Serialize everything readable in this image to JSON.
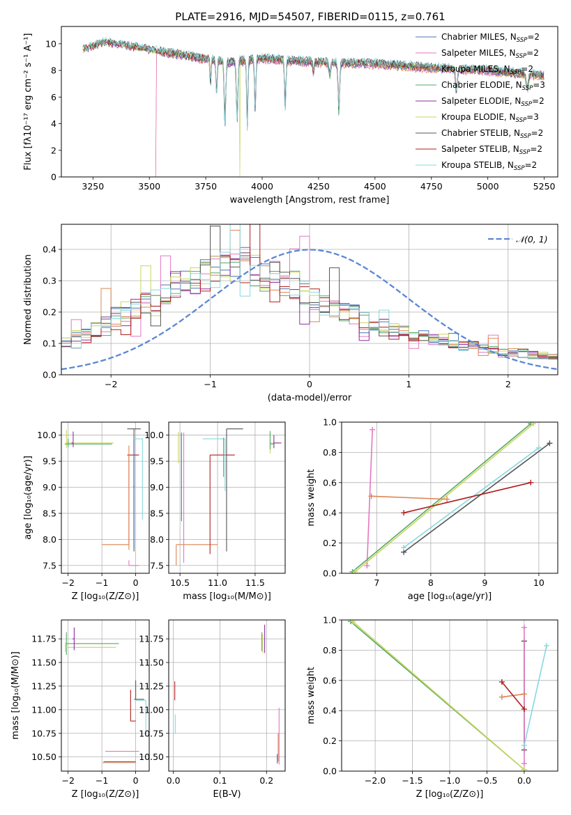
{
  "figure_title": "PLATE=2916, MJD=54507, FIBERID=0115, z=0.761",
  "model_colors": {
    "Chabrier MILES": "#4c72b0",
    "Salpeter MILES": "#e377c2",
    "Kroupa MILES": "#dd8452",
    "Chabrier ELODIE": "#55a868",
    "Salpeter ELODIE": "#8c2d9f",
    "Kroupa ELODIE": "#c9d65a",
    "Chabrier STELIB": "#555555",
    "Salpeter STELIB": "#b01e1e",
    "Kroupa STELIB": "#86d8de"
  },
  "chart_data": [
    {
      "id": "spectrum",
      "type": "line",
      "xlabel": "wavelength [Angstrom, rest frame]",
      "ylabel": "Flux [fλ10⁻¹⁷ erg cm⁻² s⁻¹ A⁻¹]",
      "xlim": [
        3110,
        5310
      ],
      "ylim": [
        0,
        11.3
      ],
      "xticks": [
        3250,
        3500,
        3750,
        4000,
        4250,
        4500,
        4750,
        5000,
        5250
      ],
      "yticks": [
        0,
        2,
        4,
        6,
        8,
        10
      ],
      "legend_position": "top-right",
      "legend": [
        {
          "label": "Chabrier MILES, N",
          "sub": "SSP",
          "tail": "=2",
          "model": "Chabrier MILES"
        },
        {
          "label": "Salpeter MILES, N",
          "sub": "SSP",
          "tail": "=2",
          "model": "Salpeter MILES"
        },
        {
          "label": "Kroupa MILES, N",
          "sub": "SSP",
          "tail": "=2",
          "model": "Kroupa MILES"
        },
        {
          "label": "Chabrier ELODIE, N",
          "sub": "SSP",
          "tail": "=3",
          "model": "Chabrier ELODIE"
        },
        {
          "label": "Salpeter ELODIE, N",
          "sub": "SSP",
          "tail": "=2",
          "model": "Salpeter ELODIE"
        },
        {
          "label": "Kroupa ELODIE, N",
          "sub": "SSP",
          "tail": "=3",
          "model": "Kroupa ELODIE"
        },
        {
          "label": "Chabrier STELIB, N",
          "sub": "SSP",
          "tail": "=2",
          "model": "Chabrier STELIB"
        },
        {
          "label": "Salpeter STELIB, N",
          "sub": "SSP",
          "tail": "=2",
          "model": "Salpeter STELIB"
        },
        {
          "label": "Kroupa STELIB, N",
          "sub": "SSP",
          "tail": "=2",
          "model": "Kroupa STELIB"
        }
      ],
      "continuum_knots": [
        [
          3200,
          9.5
        ],
        [
          3300,
          10.1
        ],
        [
          3450,
          9.7
        ],
        [
          3550,
          9.4
        ],
        [
          3700,
          9.0
        ],
        [
          3850,
          8.6
        ],
        [
          4000,
          8.9
        ],
        [
          4250,
          8.6
        ],
        [
          4500,
          8.5
        ],
        [
          4750,
          8.2
        ],
        [
          5000,
          8.0
        ],
        [
          5250,
          7.6
        ]
      ],
      "absorption_lines": [
        [
          3835,
          4.7,
          10
        ],
        [
          3889,
          4.4,
          10
        ],
        [
          3934,
          5.2,
          8
        ],
        [
          3969,
          4.1,
          8
        ],
        [
          4102,
          3.8,
          9
        ],
        [
          4340,
          3.9,
          10
        ],
        [
          4861,
          1.9,
          10
        ],
        [
          5175,
          1.2,
          14
        ],
        [
          3798,
          2.6,
          8
        ],
        [
          3771,
          2.0,
          7
        ],
        [
          4227,
          0.9,
          8
        ],
        [
          4300,
          1.0,
          10
        ]
      ]
    },
    {
      "id": "residuals",
      "type": "histogram",
      "xlabel": "(data-model)/error",
      "ylabel": "Normed distribution",
      "xlim": [
        -2.5,
        2.5
      ],
      "ylim": [
        0,
        0.48
      ],
      "xticks": [
        -2,
        -1,
        0,
        1,
        2
      ],
      "yticks": [
        0.0,
        0.1,
        0.2,
        0.3,
        0.4
      ],
      "bin_edges_range": [
        -2.5,
        2.5
      ],
      "bins": 50,
      "reference_curve": {
        "name": "𝒩(0, 1)",
        "type": "gaussian",
        "mean": 0,
        "sigma": 1,
        "color": "#5b86d6"
      },
      "legend_position": "top-right",
      "reference_shape": [
        0.1,
        0.12,
        0.12,
        0.14,
        0.16,
        0.18,
        0.18,
        0.2,
        0.22,
        0.22,
        0.26,
        0.28,
        0.28,
        0.3,
        0.3,
        0.32,
        0.33,
        0.33,
        0.34,
        0.33,
        0.31,
        0.3,
        0.28,
        0.28,
        0.26,
        0.24,
        0.22,
        0.21,
        0.2,
        0.19,
        0.17,
        0.16,
        0.15,
        0.14,
        0.13,
        0.12,
        0.12,
        0.11,
        0.1,
        0.1,
        0.09,
        0.09,
        0.08,
        0.08,
        0.07,
        0.07,
        0.07,
        0.06,
        0.06,
        0.06
      ]
    },
    {
      "id": "age_vs_Z",
      "type": "error_bars",
      "xlabel": "Z [log₁₀(Z/Z⊙)]",
      "ylabel": "age  [log₁₀(age/yr)]",
      "xlim": [
        -2.2,
        0.4
      ],
      "ylim": [
        7.35,
        10.25
      ],
      "xticks": [
        -2,
        -1,
        0
      ],
      "yticks": [
        7.5,
        8.0,
        8.5,
        9.0,
        9.5,
        10.0
      ],
      "points": [
        {
          "model": "Kroupa ELODIE",
          "x": -2.05,
          "y": 9.85,
          "xerr": [
            0.0,
            1.4
          ],
          "yerr": [
            0.1,
            0.25
          ]
        },
        {
          "model": "Chabrier ELODIE",
          "x": -2.0,
          "y": 9.83,
          "xerr": [
            0.1,
            1.3
          ],
          "yerr": [
            0.06,
            0.1
          ]
        },
        {
          "model": "Salpeter ELODIE",
          "x": -1.85,
          "y": 9.85,
          "xerr": [
            0.05,
            0.0
          ],
          "yerr": [
            0.08,
            0.22
          ]
        },
        {
          "model": "Chabrier STELIB",
          "x": -0.05,
          "y": 10.12,
          "xerr": [
            0.2,
            0.2
          ],
          "yerr": [
            2.35,
            0.0
          ]
        },
        {
          "model": "Kroupa STELIB",
          "x": 0.2,
          "y": 9.93,
          "xerr": [
            0.25,
            0.02
          ],
          "yerr": [
            1.55,
            0.0
          ]
        },
        {
          "model": "Salpeter STELIB",
          "x": -0.2,
          "y": 9.62,
          "xerr": [
            0.05,
            0.3
          ],
          "yerr": [
            1.7,
            0.0
          ]
        },
        {
          "model": "Kroupa MILES",
          "x": -0.2,
          "y": 7.9,
          "xerr": [
            0.8,
            0.0
          ],
          "yerr": [
            0.1,
            1.9
          ]
        },
        {
          "model": "Salpeter MILES",
          "x": -0.2,
          "y": 7.5,
          "xerr": [
            0.0,
            0.3
          ],
          "yerr": [
            0.0,
            0.1
          ]
        },
        {
          "model": "Chabrier MILES",
          "x": -0.05,
          "y": 9.02,
          "xerr": [
            0.02,
            0.02
          ],
          "yerr": [
            1.2,
            0.9
          ]
        }
      ]
    },
    {
      "id": "age_vs_mass",
      "type": "error_bars",
      "xlabel": "mass [log₁₀(M/M⊙)]",
      "ylabel": "",
      "xlim": [
        10.35,
        11.9
      ],
      "ylim": [
        7.35,
        10.25
      ],
      "xticks": [
        10.5,
        11.0,
        11.5
      ],
      "yticks": [
        7.5,
        8.0,
        8.5,
        9.0,
        9.5,
        10.0
      ],
      "points": [
        {
          "model": "Salpeter MILES",
          "x": 10.55,
          "y": 10.05,
          "xerr": [
            0.0,
            0.0
          ],
          "yerr": [
            2.5,
            0.0
          ]
        },
        {
          "model": "Kroupa ELODIE",
          "x": 10.48,
          "y": 10.06,
          "xerr": [
            0.0,
            0.0
          ],
          "yerr": [
            0.6,
            0.0
          ]
        },
        {
          "model": "Chabrier MILES",
          "x": 10.52,
          "y": 10.05,
          "xerr": [
            0.0,
            0.0
          ],
          "yerr": [
            1.7,
            0.0
          ]
        },
        {
          "model": "Kroupa MILES",
          "x": 10.45,
          "y": 7.9,
          "xerr": [
            0.0,
            0.55
          ],
          "yerr": [
            0.4,
            0.0
          ]
        },
        {
          "model": "Salpeter STELIB",
          "x": 10.9,
          "y": 9.62,
          "xerr": [
            0.0,
            0.33
          ],
          "yerr": [
            1.9,
            0.0
          ]
        },
        {
          "model": "Kroupa STELIB",
          "x": 11.1,
          "y": 9.93,
          "xerr": [
            0.3,
            0.0
          ],
          "yerr": [
            1.0,
            0.0
          ]
        },
        {
          "model": "Chabrier STELIB",
          "x": 11.12,
          "y": 10.12,
          "xerr": [
            0.0,
            0.22
          ],
          "yerr": [
            2.35,
            0.0
          ]
        },
        {
          "model": "Chabrier ELODIE",
          "x": 11.08,
          "y": 9.95,
          "xerr": [
            0.0,
            0.0
          ],
          "yerr": [
            0.75,
            0.0
          ]
        },
        {
          "model": "Kroupa ELODIE",
          "x": 11.7,
          "y": 9.85,
          "xerr": [
            0.0,
            0.12
          ],
          "yerr": [
            0.2,
            0.2
          ]
        },
        {
          "model": "Salpeter ELODIE",
          "x": 11.75,
          "y": 9.85,
          "xerr": [
            0.0,
            0.1
          ],
          "yerr": [
            0.1,
            0.15
          ]
        },
        {
          "model": "Chabrier ELODIE",
          "x": 11.7,
          "y": 9.83,
          "xerr": [
            0.0,
            0.06
          ],
          "yerr": [
            0.1,
            0.25
          ]
        }
      ]
    },
    {
      "id": "massweight_vs_age",
      "type": "line",
      "xlabel": "age  [log₁₀(age/yr)]",
      "ylabel": "mass weight",
      "xlim": [
        6.35,
        10.35
      ],
      "ylim": [
        0,
        1
      ],
      "xticks": [
        7,
        8,
        9,
        10
      ],
      "yticks": [
        0.0,
        0.2,
        0.4,
        0.6,
        0.8,
        1.0
      ],
      "series": [
        {
          "model": "Salpeter MILES",
          "x": [
            6.82,
            6.92
          ],
          "y": [
            0.05,
            0.95
          ]
        },
        {
          "model": "Chabrier ELODIE",
          "x": [
            6.55,
            9.85
          ],
          "y": [
            0.01,
            0.99
          ]
        },
        {
          "model": "Kroupa ELODIE",
          "x": [
            6.6,
            9.9
          ],
          "y": [
            0.01,
            0.99
          ]
        },
        {
          "model": "Chabrier STELIB",
          "x": [
            7.5,
            10.2
          ],
          "y": [
            0.14,
            0.86
          ]
        },
        {
          "model": "Kroupa STELIB",
          "x": [
            7.5,
            10.0
          ],
          "y": [
            0.17,
            0.83
          ]
        },
        {
          "model": "Kroupa MILES",
          "x": [
            6.9,
            8.3
          ],
          "y": [
            0.51,
            0.49
          ]
        },
        {
          "model": "Salpeter STELIB",
          "x": [
            7.5,
            9.85
          ],
          "y": [
            0.4,
            0.6
          ]
        }
      ]
    },
    {
      "id": "mass_vs_Z",
      "type": "error_bars",
      "xlabel": "Z [log₁₀(Z/Z⊙)]",
      "ylabel": "mass [log₁₀(M/M⊙)]",
      "xlim": [
        -2.2,
        0.4
      ],
      "ylim": [
        10.35,
        11.95
      ],
      "xticks": [
        -2,
        -1,
        0
      ],
      "yticks": [
        10.5,
        10.75,
        11.0,
        11.25,
        11.5,
        11.75
      ],
      "points": [
        {
          "model": "Chabrier ELODIE",
          "x": -2.05,
          "y": 11.7,
          "xerr": [
            0.0,
            1.55
          ],
          "yerr": [
            0.12,
            0.12
          ]
        },
        {
          "model": "Kroupa ELODIE",
          "x": -2.08,
          "y": 11.66,
          "xerr": [
            0.0,
            1.5
          ],
          "yerr": [
            0.05,
            0.05
          ]
        },
        {
          "model": "Salpeter ELODIE",
          "x": -1.82,
          "y": 11.75,
          "xerr": [
            0.05,
            0.0
          ],
          "yerr": [
            0.12,
            0.12
          ]
        },
        {
          "model": "Chabrier STELIB",
          "x": 0.0,
          "y": 11.11,
          "xerr": [
            0.05,
            0.25
          ],
          "yerr": [
            0.0,
            0.2
          ]
        },
        {
          "model": "Salpeter STELIB",
          "x": -0.15,
          "y": 10.88,
          "xerr": [
            0.0,
            0.15
          ],
          "yerr": [
            0.0,
            0.33
          ]
        },
        {
          "model": "Kroupa STELIB",
          "x": 0.3,
          "y": 11.1,
          "xerr": [
            0.3,
            0.0
          ],
          "yerr": [
            0.35,
            0.0
          ]
        },
        {
          "model": "Salpeter MILES",
          "x": -0.9,
          "y": 10.56,
          "xerr": [
            0.0,
            1.0
          ],
          "yerr": [
            0.0,
            0.0
          ]
        },
        {
          "model": "Chabrier MILES",
          "x": -0.95,
          "y": 10.45,
          "xerr": [
            0.0,
            0.95
          ],
          "yerr": [
            0.0,
            0.0
          ]
        },
        {
          "model": "Kroupa MILES",
          "x": -0.98,
          "y": 10.44,
          "xerr": [
            0.0,
            0.98
          ],
          "yerr": [
            0.0,
            0.0
          ]
        }
      ]
    },
    {
      "id": "mass_vs_EBV",
      "type": "error_bars",
      "xlabel": "E(B-V)",
      "ylabel": "",
      "xlim": [
        -0.01,
        0.24
      ],
      "ylim": [
        10.35,
        11.95
      ],
      "xticks": [
        0.0,
        0.1,
        0.2
      ],
      "yticks": [
        10.5,
        10.75,
        11.0,
        11.25,
        11.5,
        11.75
      ],
      "points": [
        {
          "model": "Salpeter STELIB",
          "x": 0.003,
          "y": 11.2,
          "xerr": [
            0.0,
            0.0
          ],
          "yerr": [
            0.1,
            0.1
          ]
        },
        {
          "model": "Kroupa STELIB",
          "x": 0.004,
          "y": 10.85,
          "xerr": [
            0.0,
            0.0
          ],
          "yerr": [
            0.1,
            0.1
          ]
        },
        {
          "model": "Chabrier ELODIE",
          "x": 0.19,
          "y": 11.72,
          "xerr": [
            0.0,
            0.0
          ],
          "yerr": [
            0.1,
            0.1
          ]
        },
        {
          "model": "Kroupa ELODIE",
          "x": 0.192,
          "y": 11.7,
          "xerr": [
            0.0,
            0.0
          ],
          "yerr": [
            0.1,
            0.1
          ]
        },
        {
          "model": "Salpeter ELODIE",
          "x": 0.196,
          "y": 11.75,
          "xerr": [
            0.0,
            0.0
          ],
          "yerr": [
            0.15,
            0.15
          ]
        },
        {
          "model": "Salpeter MILES",
          "x": 0.227,
          "y": 10.72,
          "xerr": [
            0.0,
            0.0
          ],
          "yerr": [
            0.3,
            0.3
          ]
        },
        {
          "model": "Kroupa MILES",
          "x": 0.225,
          "y": 10.6,
          "xerr": [
            0.0,
            0.0
          ],
          "yerr": [
            0.15,
            0.15
          ]
        },
        {
          "model": "Chabrier MILES",
          "x": 0.223,
          "y": 10.48,
          "xerr": [
            0.0,
            0.0
          ],
          "yerr": [
            0.05,
            0.05
          ]
        }
      ]
    },
    {
      "id": "massweight_vs_Z",
      "type": "line",
      "xlabel": "Z [log₁₀(Z/Z⊙)]",
      "ylabel": "mass weight",
      "xlim": [
        -2.45,
        0.45
      ],
      "ylim": [
        0,
        1
      ],
      "xticks": [
        -2.0,
        -1.5,
        -1.0,
        -0.5,
        0.0
      ],
      "yticks": [
        0.0,
        0.2,
        0.4,
        0.6,
        0.8,
        1.0
      ],
      "series": [
        {
          "model": "Chabrier ELODIE",
          "x": [
            -2.33,
            0.0
          ],
          "y": [
            0.99,
            0.01
          ]
        },
        {
          "model": "Kroupa ELODIE",
          "x": [
            -2.3,
            0.0
          ],
          "y": [
            0.99,
            0.01
          ]
        },
        {
          "model": "Chabrier STELIB",
          "x": [
            0.0,
            0.0
          ],
          "y": [
            0.14,
            0.86
          ]
        },
        {
          "model": "Salpeter MILES",
          "x": [
            0.0,
            0.0
          ],
          "y": [
            0.05,
            0.95
          ]
        },
        {
          "model": "Kroupa STELIB",
          "x": [
            0.0,
            0.3
          ],
          "y": [
            0.17,
            0.83
          ]
        },
        {
          "model": "Kroupa MILES",
          "x": [
            -0.3,
            0.0
          ],
          "y": [
            0.49,
            0.51
          ]
        },
        {
          "model": "Salpeter STELIB",
          "x": [
            -0.3,
            0.0
          ],
          "y": [
            0.59,
            0.41
          ]
        }
      ]
    }
  ]
}
